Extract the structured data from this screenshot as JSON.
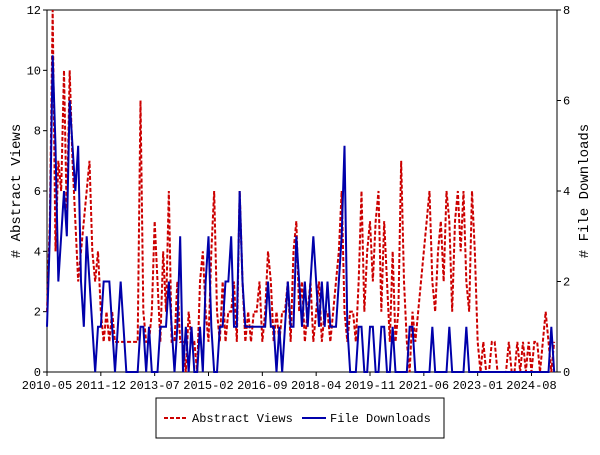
{
  "chart_data": {
    "type": "line",
    "x": [
      "2010-05",
      "2010-06",
      "2010-07",
      "2010-08",
      "2010-09",
      "2010-10",
      "2010-11",
      "2010-12",
      "2011-01",
      "2011-02",
      "2011-03",
      "2011-04",
      "2011-05",
      "2011-06",
      "2011-07",
      "2011-08",
      "2011-09",
      "2011-10",
      "2011-11",
      "2011-12",
      "2012-01",
      "2012-02",
      "2012-03",
      "2012-04",
      "2012-05",
      "2012-06",
      "2012-07",
      "2012-08",
      "2012-09",
      "2012-10",
      "2012-11",
      "2012-12",
      "2013-01",
      "2013-02",
      "2013-03",
      "2013-04",
      "2013-05",
      "2013-06",
      "2013-07",
      "2013-08",
      "2013-09",
      "2013-10",
      "2013-11",
      "2013-12",
      "2014-01",
      "2014-02",
      "2014-03",
      "2014-04",
      "2014-05",
      "2014-06",
      "2014-07",
      "2014-08",
      "2014-09",
      "2014-10",
      "2014-11",
      "2014-12",
      "2015-01",
      "2015-02",
      "2015-03",
      "2015-04",
      "2015-05",
      "2015-06",
      "2015-07",
      "2015-08",
      "2015-09",
      "2015-10",
      "2015-11",
      "2015-12",
      "2016-01",
      "2016-02",
      "2016-03",
      "2016-04",
      "2016-05",
      "2016-06",
      "2016-07",
      "2016-08",
      "2016-09",
      "2016-10",
      "2016-11",
      "2016-12",
      "2017-01",
      "2017-02",
      "2017-03",
      "2017-04",
      "2017-05",
      "2017-06",
      "2017-07",
      "2017-08",
      "2017-09",
      "2017-10",
      "2017-11",
      "2017-12",
      "2018-01",
      "2018-02",
      "2018-03",
      "2018-04",
      "2018-05",
      "2018-06",
      "2018-07",
      "2018-08",
      "2018-09",
      "2018-10",
      "2018-11",
      "2018-12",
      "2019-01",
      "2019-02",
      "2019-03",
      "2019-04",
      "2019-05",
      "2019-06",
      "2019-07",
      "2019-08",
      "2019-09",
      "2019-10",
      "2019-11",
      "2019-12",
      "2020-01",
      "2020-02",
      "2020-03",
      "2020-04",
      "2020-05",
      "2020-06",
      "2020-07",
      "2020-08",
      "2020-09",
      "2020-10",
      "2020-11",
      "2020-12",
      "2021-01",
      "2021-02",
      "2021-03",
      "2021-04",
      "2021-05",
      "2021-06",
      "2021-07",
      "2021-08",
      "2021-09",
      "2021-10",
      "2021-11",
      "2021-12",
      "2022-01",
      "2022-02",
      "2022-03",
      "2022-04",
      "2022-05",
      "2022-06",
      "2022-07",
      "2022-08",
      "2022-09",
      "2022-10",
      "2022-11",
      "2022-12",
      "2023-01",
      "2023-02",
      "2023-03",
      "2023-04",
      "2023-05",
      "2023-06",
      "2023-07",
      "2023-08",
      "2023-09",
      "2023-10",
      "2023-11",
      "2023-12",
      "2024-01",
      "2024-02",
      "2024-03",
      "2024-04",
      "2024-05",
      "2024-06",
      "2024-07",
      "2024-08",
      "2024-09",
      "2024-10",
      "2024-11",
      "2024-12",
      "2025-01",
      "2025-02",
      "2025-03",
      "2025-04"
    ],
    "series": [
      {
        "name": "Abstract Views",
        "color": "#cc0000",
        "dash": true,
        "axis": "y",
        "values": [
          2,
          5,
          12,
          4,
          7,
          6,
          10,
          5,
          10,
          7,
          5,
          3,
          4,
          5,
          6,
          7,
          4,
          3,
          4,
          2,
          1,
          2,
          1,
          2,
          1,
          1,
          1,
          1,
          1,
          1,
          1,
          1,
          1,
          9,
          2,
          1,
          1,
          2,
          5,
          3,
          1,
          4,
          2,
          6,
          1,
          1,
          3,
          1,
          1,
          0,
          2,
          1,
          1,
          0,
          3,
          4,
          2,
          1,
          4,
          6,
          2,
          1,
          3,
          1,
          2,
          2,
          3,
          1,
          6,
          3,
          1,
          2,
          1,
          2,
          2,
          3,
          1,
          2,
          4,
          3,
          1,
          2,
          1,
          2,
          2,
          3,
          1,
          4,
          5,
          2,
          3,
          1,
          2,
          3,
          1,
          2,
          3,
          1,
          2,
          2,
          1,
          2,
          3,
          4,
          6,
          2,
          1,
          2,
          2,
          1,
          3,
          6,
          2,
          4,
          5,
          3,
          5,
          6,
          2,
          5,
          3,
          1,
          4,
          1,
          2,
          7,
          3,
          1,
          0,
          2,
          1,
          2,
          3,
          4,
          5,
          6,
          3,
          2,
          4,
          5,
          3,
          6,
          5,
          2,
          5,
          6,
          4,
          6,
          3,
          2,
          6,
          4,
          1,
          0,
          1,
          0,
          0,
          1,
          1,
          0,
          0,
          0,
          0,
          1,
          0,
          0,
          1,
          0,
          1,
          0,
          1,
          0,
          1,
          1,
          0,
          1,
          2,
          1,
          0,
          1
        ]
      },
      {
        "name": "File Downloads",
        "color": "#0000aa",
        "dash": false,
        "axis": "y2",
        "values": [
          1,
          3,
          7,
          5,
          2,
          3,
          4,
          3,
          6,
          5,
          4,
          5,
          2,
          1,
          3,
          2,
          1,
          0,
          1,
          1,
          2,
          2,
          2,
          1,
          0,
          1,
          2,
          1,
          0,
          0,
          0,
          0,
          0,
          1,
          1,
          0,
          1,
          0,
          0,
          0,
          1,
          1,
          1,
          2,
          1,
          0,
          1,
          3,
          0,
          1,
          0,
          1,
          0,
          0,
          1,
          0,
          2,
          3,
          1,
          0,
          0,
          1,
          1,
          2,
          2,
          3,
          1,
          1,
          4,
          2,
          1,
          1,
          1,
          1,
          1,
          1,
          1,
          1,
          2,
          1,
          1,
          0,
          1,
          0,
          1,
          2,
          1,
          1,
          3,
          2,
          1,
          2,
          1,
          2,
          3,
          2,
          1,
          2,
          1,
          2,
          1,
          1,
          1,
          2,
          3,
          5,
          1,
          0,
          0,
          0,
          1,
          1,
          0,
          0,
          1,
          1,
          0,
          0,
          1,
          1,
          0,
          0,
          1,
          0,
          0,
          0,
          0,
          0,
          1,
          1,
          0,
          0,
          0,
          0,
          0,
          0,
          1,
          0,
          0,
          0,
          0,
          0,
          1,
          0,
          0,
          0,
          0,
          0,
          1,
          0,
          0,
          0,
          0,
          0,
          0,
          0,
          0,
          0,
          0,
          0,
          0,
          0,
          0,
          0,
          0,
          0,
          0,
          0,
          0,
          0,
          0,
          0,
          0,
          0,
          0,
          0,
          0,
          0,
          1,
          0
        ]
      }
    ],
    "ylabel": "# Abstract Views",
    "y2label": "# File Downloads",
    "ylim": [
      0,
      12
    ],
    "yticks": [
      0,
      2,
      4,
      6,
      8,
      10,
      12
    ],
    "y2lim": [
      0,
      8
    ],
    "y2ticks": [
      0,
      2,
      4,
      6,
      8
    ],
    "xticks": [
      "2010-05",
      "2011-12",
      "2013-07",
      "2015-02",
      "2016-09",
      "2018-04",
      "2019-11",
      "2021-06",
      "2023-01",
      "2024-08"
    ],
    "legend": "bottom"
  }
}
